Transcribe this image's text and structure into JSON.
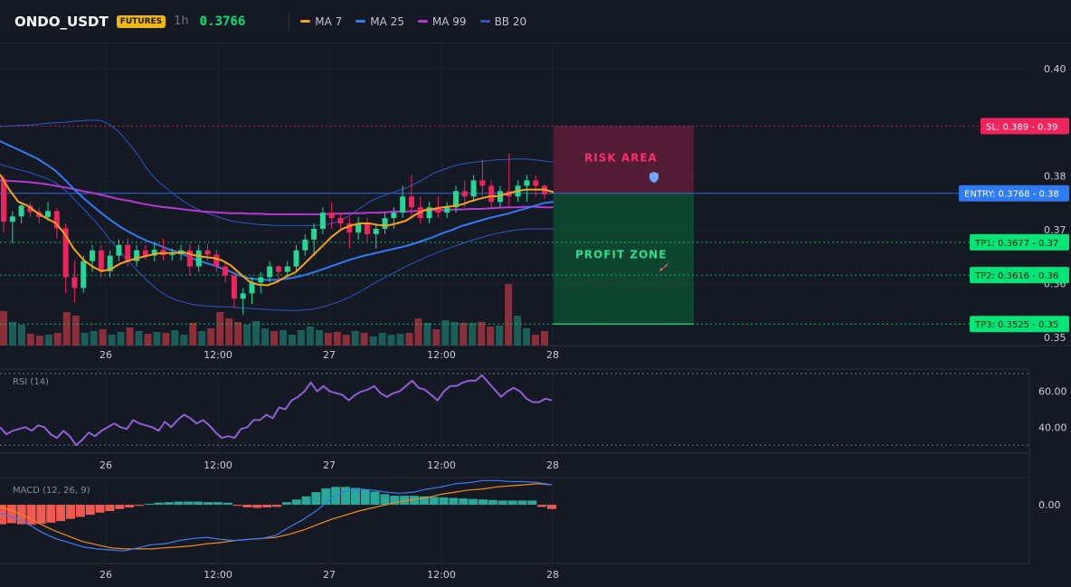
{
  "header": {
    "symbol": "ONDO_USDT",
    "badge": "FUTURES",
    "timeframe": "1h",
    "price": "0.3766",
    "legend": [
      {
        "label": "MA 7",
        "color": "#f7a21b"
      },
      {
        "label": "MA 25",
        "color": "#2f7bf5"
      },
      {
        "label": "MA 99",
        "color": "#b23ad0"
      },
      {
        "label": "BB 20",
        "color": "#2f55c6"
      }
    ]
  },
  "colors": {
    "up": "#26d694",
    "down": "#f0245d",
    "vol_up": "#1a5e57",
    "vol_down": "#8c2f3b"
  },
  "chart_data": [
    {
      "type": "candlestick",
      "title": "ONDO_USDT",
      "xlabels": [
        "26",
        "12:00",
        "27",
        "12:00",
        "28"
      ],
      "ylabels": [
        "0.40",
        "0.38",
        "0.37",
        "0.36",
        "0.35"
      ],
      "ylim": [
        0.3485,
        0.4045
      ],
      "candles": [
        [
          0.3795,
          0.3802,
          0.3695,
          0.3715
        ],
        [
          0.3715,
          0.3735,
          0.3675,
          0.3725
        ],
        [
          0.3725,
          0.3752,
          0.3712,
          0.3745
        ],
        [
          0.3745,
          0.3752,
          0.3724,
          0.3733
        ],
        [
          0.3733,
          0.3741,
          0.3712,
          0.3724
        ],
        [
          0.3724,
          0.3752,
          0.3716,
          0.3735
        ],
        [
          0.3735,
          0.3741,
          0.3684,
          0.3703
        ],
        [
          0.3703,
          0.3712,
          0.3582,
          0.3612
        ],
        [
          0.3612,
          0.3642,
          0.3565,
          0.3592
        ],
        [
          0.3592,
          0.3652,
          0.3583,
          0.3642
        ],
        [
          0.3642,
          0.3672,
          0.3622,
          0.3662
        ],
        [
          0.3662,
          0.3672,
          0.3612,
          0.3623
        ],
        [
          0.3623,
          0.3662,
          0.3612,
          0.3652
        ],
        [
          0.3652,
          0.3682,
          0.3642,
          0.3672
        ],
        [
          0.3672,
          0.3684,
          0.3632,
          0.3642
        ],
        [
          0.3642,
          0.3672,
          0.3632,
          0.3662
        ],
        [
          0.3662,
          0.3672,
          0.3645,
          0.3652
        ],
        [
          0.3652,
          0.3675,
          0.3642,
          0.3663
        ],
        [
          0.3663,
          0.3684,
          0.3643,
          0.3653
        ],
        [
          0.3653,
          0.3665,
          0.3642,
          0.3655
        ],
        [
          0.3655,
          0.3672,
          0.3643,
          0.3662
        ],
        [
          0.3662,
          0.3674,
          0.3615,
          0.3632
        ],
        [
          0.3632,
          0.3672,
          0.3622,
          0.3662
        ],
        [
          0.3662,
          0.3673,
          0.3642,
          0.3654
        ],
        [
          0.3654,
          0.3663,
          0.3622,
          0.3632
        ],
        [
          0.3632,
          0.3642,
          0.3602,
          0.3615
        ],
        [
          0.3615,
          0.3622,
          0.3555,
          0.3572
        ],
        [
          0.3572,
          0.3592,
          0.3542,
          0.3582
        ],
        [
          0.3582,
          0.3612,
          0.3562,
          0.3602
        ],
        [
          0.3602,
          0.3622,
          0.3582,
          0.3612
        ],
        [
          0.3612,
          0.3642,
          0.3602,
          0.3632
        ],
        [
          0.3632,
          0.3634,
          0.3602,
          0.3622
        ],
        [
          0.3622,
          0.3642,
          0.3612,
          0.3632
        ],
        [
          0.3632,
          0.3672,
          0.3622,
          0.3662
        ],
        [
          0.3662,
          0.3692,
          0.3652,
          0.3682
        ],
        [
          0.3682,
          0.3712,
          0.3652,
          0.3702
        ],
        [
          0.3702,
          0.3742,
          0.3692,
          0.3732
        ],
        [
          0.3732,
          0.3752,
          0.3702,
          0.3722
        ],
        [
          0.3722,
          0.3732,
          0.3702,
          0.3712
        ],
        [
          0.3712,
          0.3724,
          0.3665,
          0.3695
        ],
        [
          0.3695,
          0.3724,
          0.3682,
          0.3712
        ],
        [
          0.3712,
          0.3722,
          0.3678,
          0.3692
        ],
        [
          0.3692,
          0.3712,
          0.3665,
          0.3702
        ],
        [
          0.3702,
          0.3732,
          0.3692,
          0.3722
        ],
        [
          0.3722,
          0.3742,
          0.3702,
          0.3732
        ],
        [
          0.3732,
          0.3782,
          0.3722,
          0.3762
        ],
        [
          0.3762,
          0.3802,
          0.3722,
          0.3742
        ],
        [
          0.3742,
          0.3762,
          0.3712,
          0.3722
        ],
        [
          0.3722,
          0.3752,
          0.3712,
          0.3742
        ],
        [
          0.3742,
          0.3762,
          0.3722,
          0.3732
        ],
        [
          0.3732,
          0.3752,
          0.3722,
          0.3742
        ],
        [
          0.3742,
          0.3782,
          0.3732,
          0.3772
        ],
        [
          0.3772,
          0.3792,
          0.3742,
          0.3762
        ],
        [
          0.3762,
          0.3802,
          0.3752,
          0.3792
        ],
        [
          0.3792,
          0.3832,
          0.3762,
          0.3782
        ],
        [
          0.3782,
          0.3792,
          0.3742,
          0.3752
        ],
        [
          0.3752,
          0.3782,
          0.3742,
          0.3772
        ],
        [
          0.3772,
          0.3842,
          0.3742,
          0.3762
        ],
        [
          0.3762,
          0.3792,
          0.3752,
          0.3782
        ],
        [
          0.3782,
          0.3802,
          0.3752,
          0.3792
        ],
        [
          0.3792,
          0.3802,
          0.3762,
          0.3782
        ],
        [
          0.3782,
          0.3785,
          0.3758,
          0.3766
        ]
      ],
      "volume": [
        38,
        26,
        23,
        13,
        11,
        12,
        14,
        37,
        33,
        14,
        16,
        18,
        12,
        15,
        20,
        16,
        13,
        15,
        14,
        17,
        12,
        25,
        16,
        19,
        37,
        30,
        26,
        23,
        27,
        19,
        16,
        17,
        12,
        17,
        21,
        17,
        14,
        15,
        12,
        16,
        14,
        10,
        14,
        12,
        13,
        14,
        30,
        25,
        18,
        28,
        26,
        25,
        25,
        26,
        21,
        22,
        68,
        33,
        19,
        12,
        16
      ],
      "ma7": [
        0.3803,
        0.3775,
        0.3752,
        0.3745,
        0.3732,
        0.3722,
        0.3713,
        0.3693,
        0.3665,
        0.3645,
        0.3632,
        0.3623,
        0.3627,
        0.3637,
        0.3643,
        0.3648,
        0.3652,
        0.3656,
        0.3657,
        0.3657,
        0.3658,
        0.3653,
        0.365,
        0.3648,
        0.3644,
        0.3634,
        0.3619,
        0.3604,
        0.3598,
        0.3597,
        0.3603,
        0.3613,
        0.3621,
        0.3637,
        0.3654,
        0.3671,
        0.3688,
        0.3701,
        0.3708,
        0.3712,
        0.3712,
        0.3709,
        0.3708,
        0.3712,
        0.3717,
        0.3728,
        0.3737,
        0.3739,
        0.3742,
        0.3744,
        0.3747,
        0.3753,
        0.3758,
        0.3762,
        0.3763,
        0.3767,
        0.3772,
        0.3775,
        0.3775,
        0.3775,
        0.377
      ],
      "ma25": [
        0.3865,
        0.3857,
        0.3849,
        0.3841,
        0.3833,
        0.3822,
        0.381,
        0.3794,
        0.3776,
        0.376,
        0.3745,
        0.3731,
        0.3718,
        0.3706,
        0.3696,
        0.3687,
        0.3679,
        0.3673,
        0.3666,
        0.366,
        0.3654,
        0.3646,
        0.364,
        0.3635,
        0.3629,
        0.3622,
        0.3615,
        0.361,
        0.3608,
        0.3607,
        0.3607,
        0.3609,
        0.3612,
        0.3616,
        0.3621,
        0.3627,
        0.3633,
        0.3639,
        0.3645,
        0.365,
        0.3654,
        0.3658,
        0.3662,
        0.3666,
        0.367,
        0.3675,
        0.3681,
        0.3687,
        0.3694,
        0.37,
        0.3707,
        0.3712,
        0.3717,
        0.3722,
        0.3726,
        0.373,
        0.3735,
        0.374,
        0.3745,
        0.375,
        0.3752
      ],
      "ma99": [
        0.3792,
        0.3791,
        0.379,
        0.3789,
        0.3787,
        0.3785,
        0.3782,
        0.3779,
        0.3776,
        0.3772,
        0.3769,
        0.3765,
        0.3761,
        0.3757,
        0.3754,
        0.375,
        0.3747,
        0.3744,
        0.3742,
        0.374,
        0.3738,
        0.3736,
        0.3734,
        0.3733,
        0.3732,
        0.3731,
        0.3731,
        0.373,
        0.373,
        0.3729,
        0.3729,
        0.3729,
        0.3729,
        0.3729,
        0.3729,
        0.3729,
        0.373,
        0.373,
        0.3731,
        0.3731,
        0.3732,
        0.3732,
        0.3733,
        0.3734,
        0.3734,
        0.3735,
        0.3736,
        0.3737,
        0.3737,
        0.3738,
        0.3738,
        0.3739,
        0.3739,
        0.374,
        0.3741,
        0.3742,
        0.3742,
        0.3743,
        0.3743,
        0.3742,
        0.3742
      ],
      "bb_upper": [
        0.3892,
        0.3893,
        0.3894,
        0.3895,
        0.3896,
        0.3898,
        0.3899,
        0.39,
        0.3902,
        0.3903,
        0.3904,
        0.3903,
        0.3895,
        0.388,
        0.386,
        0.3838,
        0.3812,
        0.3792,
        0.3778,
        0.3764,
        0.3752,
        0.3742,
        0.3734,
        0.3728,
        0.3722,
        0.3717,
        0.3714,
        0.3712,
        0.371,
        0.3709,
        0.3708,
        0.3708,
        0.3708,
        0.3708,
        0.3708,
        0.3709,
        0.3712,
        0.3718,
        0.3728,
        0.374,
        0.3752,
        0.376,
        0.3766,
        0.3772,
        0.3778,
        0.3786,
        0.3795,
        0.3805,
        0.3812,
        0.3818,
        0.3822,
        0.3825,
        0.3827,
        0.3829,
        0.383,
        0.3831,
        0.3832,
        0.3832,
        0.383,
        0.3828,
        0.3826
      ],
      "bb_lower": [
        0.3822,
        0.3817,
        0.3812,
        0.3808,
        0.3802,
        0.3796,
        0.3788,
        0.3775,
        0.3758,
        0.374,
        0.3722,
        0.3702,
        0.368,
        0.366,
        0.364,
        0.3622,
        0.3605,
        0.359,
        0.3578,
        0.357,
        0.3565,
        0.3561,
        0.3559,
        0.3558,
        0.3557,
        0.3557,
        0.3555,
        0.3554,
        0.3553,
        0.3552,
        0.3551,
        0.355,
        0.355,
        0.3551,
        0.3553,
        0.3557,
        0.3562,
        0.3568,
        0.3576,
        0.3585,
        0.3595,
        0.3605,
        0.3614,
        0.3623,
        0.3632,
        0.364,
        0.3648,
        0.3655,
        0.3662,
        0.3668,
        0.3674,
        0.368,
        0.3685,
        0.369,
        0.3694,
        0.3697,
        0.37,
        0.3702,
        0.3702,
        0.3702,
        0.3702
      ],
      "levels": [
        {
          "label": "SL: 0.389 - 0.39",
          "value": 0.3893,
          "color": "#f0245d"
        },
        {
          "label": "ENTRY: 0.3768 - 0.38",
          "value": 0.3768,
          "color": "#2f7bf5"
        },
        {
          "label": "TP1: 0.3677 - 0.37",
          "value": 0.3677,
          "color": "#00e676"
        },
        {
          "label": "TP2: 0.3616 - 0.36",
          "value": 0.3616,
          "color": "#00e676"
        },
        {
          "label": "TP3: 0.3525 - 0.35",
          "value": 0.3525,
          "color": "#00e676"
        }
      ],
      "zones": {
        "risk": "RISK AREA",
        "profit": "PROFIT ZONE"
      }
    },
    {
      "type": "line",
      "title": "RSI (14)",
      "xlabels": [
        "26",
        "12:00",
        "27",
        "12:00",
        "28"
      ],
      "ylabels": [
        "60.00",
        "40.00"
      ],
      "ylim": [
        26,
        72
      ],
      "guides": [
        70,
        30
      ],
      "values": [
        40,
        36,
        38,
        39,
        40,
        38,
        41,
        40,
        36,
        34,
        38,
        35,
        30,
        33,
        37,
        35,
        38,
        40,
        42,
        40,
        39,
        44,
        42,
        41,
        40,
        38,
        43,
        40,
        44,
        47,
        45,
        42,
        44,
        41,
        37,
        34,
        35,
        34,
        39,
        40,
        44,
        44,
        47,
        45,
        51,
        50,
        55,
        57,
        60,
        65,
        60,
        63,
        60,
        59,
        58,
        55,
        58,
        60,
        61,
        63,
        59,
        57,
        59,
        60,
        63,
        66,
        62,
        61,
        58,
        55,
        60,
        63,
        63,
        65,
        66,
        66,
        69,
        65,
        61,
        57,
        60,
        62,
        60,
        56,
        54,
        54,
        56,
        55
      ],
      "color": "#8d5fd6"
    },
    {
      "type": "bar+line",
      "title": "MACD (12, 26, 9)",
      "xlabels": [
        "26",
        "12:00",
        "27",
        "12:00",
        "28"
      ],
      "ylabels": [
        "0.00"
      ],
      "ylim": [
        -0.0055,
        0.0025
      ],
      "histogram": [
        -0.00185,
        -0.00175,
        -0.00185,
        -0.0019,
        -0.0018,
        -0.0017,
        -0.00155,
        -0.00135,
        -0.00115,
        -0.00095,
        -0.00075,
        -0.0006,
        -0.0004,
        -0.00025,
        -0.0001,
        0.0001,
        0.0002,
        0.00025,
        0.0003,
        0.0003,
        0.0003,
        0.00025,
        0.00025,
        0.0002,
        -0.0001,
        -0.00025,
        -0.0003,
        -0.00025,
        -0.0002,
        0.00025,
        0.0005,
        0.0008,
        0.0012,
        0.00155,
        0.0017,
        0.0017,
        0.0016,
        0.00145,
        0.00125,
        0.001,
        0.00085,
        0.00085,
        0.00085,
        0.0008,
        0.00075,
        0.0007,
        0.00065,
        0.0006,
        0.00055,
        0.0005,
        0.00045,
        0.0004,
        0.0004,
        0.0004,
        0.0004,
        -0.0002,
        -0.0004
      ],
      "macd": [
        -0.0008,
        -0.0012,
        -0.0018,
        -0.0026,
        -0.0032,
        -0.0036,
        -0.004,
        -0.0042,
        -0.0043,
        -0.0044,
        -0.0041,
        -0.0038,
        -0.0037,
        -0.0034,
        -0.0032,
        -0.0031,
        -0.0033,
        -0.0034,
        -0.0033,
        -0.0032,
        -0.0029,
        -0.0021,
        -0.0014,
        -0.0005,
        0.0006,
        0.0013,
        0.0015,
        0.0014,
        0.0012,
        0.0011,
        0.0012,
        0.0015,
        0.0017,
        0.002,
        0.0021,
        0.0023,
        0.0023,
        0.0022,
        0.0022,
        0.0021,
        0.0019
      ],
      "signal": [
        -0.0002,
        -0.0006,
        -0.0012,
        -0.0019,
        -0.0025,
        -0.003,
        -0.0035,
        -0.0038,
        -0.0041,
        -0.0042,
        -0.0042,
        -0.0042,
        -0.0041,
        -0.004,
        -0.0039,
        -0.0037,
        -0.0036,
        -0.0034,
        -0.0033,
        -0.0032,
        -0.0031,
        -0.0028,
        -0.0024,
        -0.0019,
        -0.0014,
        -0.001,
        -0.0006,
        -0.0003,
        0,
        0.0003,
        0.0005,
        0.0007,
        0.001,
        0.0012,
        0.0014,
        0.0015,
        0.0017,
        0.0018,
        0.0019,
        0.002,
        0.0019
      ],
      "macd_color": "#3b7cf5",
      "signal_color": "#f28c1a",
      "hist_up": "#2aa89a",
      "hist_down": "#ee5a52"
    }
  ]
}
